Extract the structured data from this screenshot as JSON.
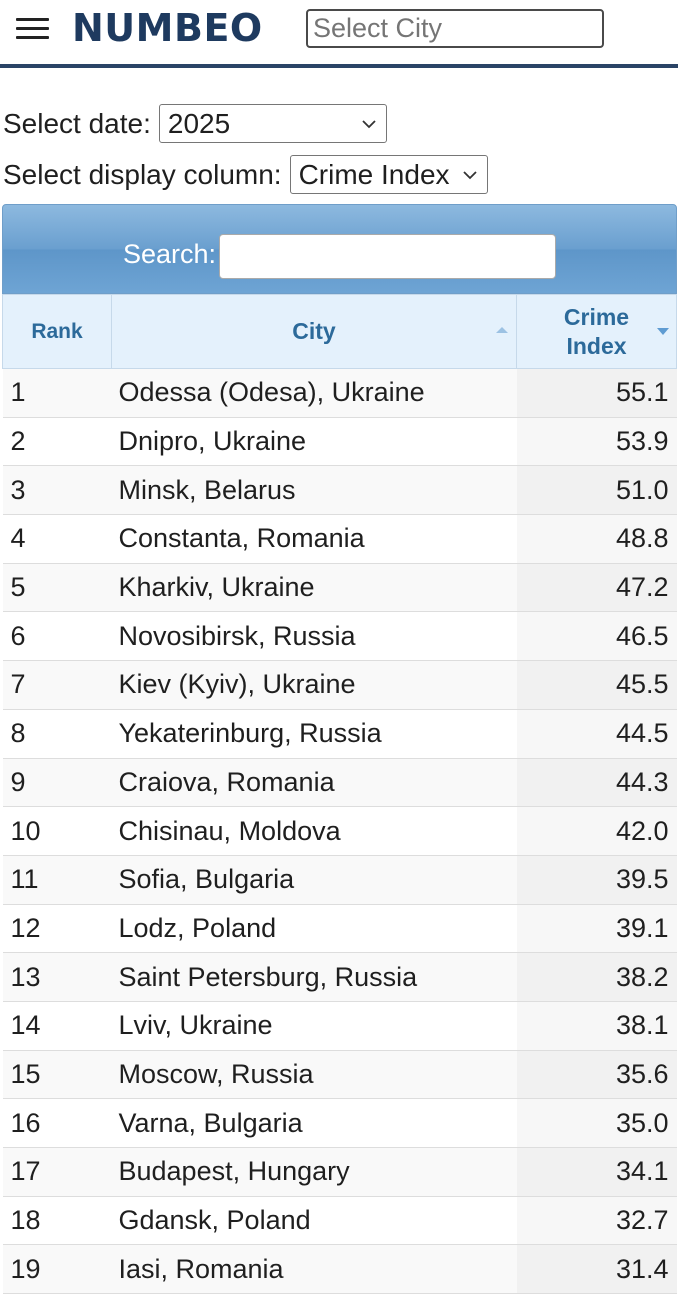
{
  "header": {
    "logo": "NUMBEO",
    "city_search_placeholder": "Select City"
  },
  "controls": {
    "date_label": "Select date:",
    "date_value": "2025",
    "column_label": "Select display column:",
    "column_value": "Crime Index"
  },
  "table": {
    "search_label": "Search:",
    "search_value": "",
    "columns": [
      "Rank",
      "City",
      "Crime Index"
    ],
    "rows": [
      {
        "rank": "1",
        "city": "Odessa (Odesa), Ukraine",
        "value": "55.1"
      },
      {
        "rank": "2",
        "city": "Dnipro, Ukraine",
        "value": "53.9"
      },
      {
        "rank": "3",
        "city": "Minsk, Belarus",
        "value": "51.0"
      },
      {
        "rank": "4",
        "city": "Constanta, Romania",
        "value": "48.8"
      },
      {
        "rank": "5",
        "city": "Kharkiv, Ukraine",
        "value": "47.2"
      },
      {
        "rank": "6",
        "city": "Novosibirsk, Russia",
        "value": "46.5"
      },
      {
        "rank": "7",
        "city": "Kiev (Kyiv), Ukraine",
        "value": "45.5"
      },
      {
        "rank": "8",
        "city": "Yekaterinburg, Russia",
        "value": "44.5"
      },
      {
        "rank": "9",
        "city": "Craiova, Romania",
        "value": "44.3"
      },
      {
        "rank": "10",
        "city": "Chisinau, Moldova",
        "value": "42.0"
      },
      {
        "rank": "11",
        "city": "Sofia, Bulgaria",
        "value": "39.5"
      },
      {
        "rank": "12",
        "city": "Lodz, Poland",
        "value": "39.1"
      },
      {
        "rank": "13",
        "city": "Saint Petersburg, Russia",
        "value": "38.2"
      },
      {
        "rank": "14",
        "city": "Lviv, Ukraine",
        "value": "38.1"
      },
      {
        "rank": "15",
        "city": "Moscow, Russia",
        "value": "35.6"
      },
      {
        "rank": "16",
        "city": "Varna, Bulgaria",
        "value": "35.0"
      },
      {
        "rank": "17",
        "city": "Budapest, Hungary",
        "value": "34.1"
      },
      {
        "rank": "18",
        "city": "Gdansk, Poland",
        "value": "32.7"
      },
      {
        "rank": "19",
        "city": "Iasi, Romania",
        "value": "31.4"
      }
    ]
  },
  "icons": {
    "menu": "hamburger-menu-icon",
    "dropdown": "chevron-down-icon",
    "sort_asc": "sort-ascending-icon",
    "sort_desc": "sort-descending-icon"
  },
  "colors": {
    "brand": "#1e3a5f",
    "header_text": "#2c6a9a",
    "search_bar": "#6a9fcf"
  }
}
